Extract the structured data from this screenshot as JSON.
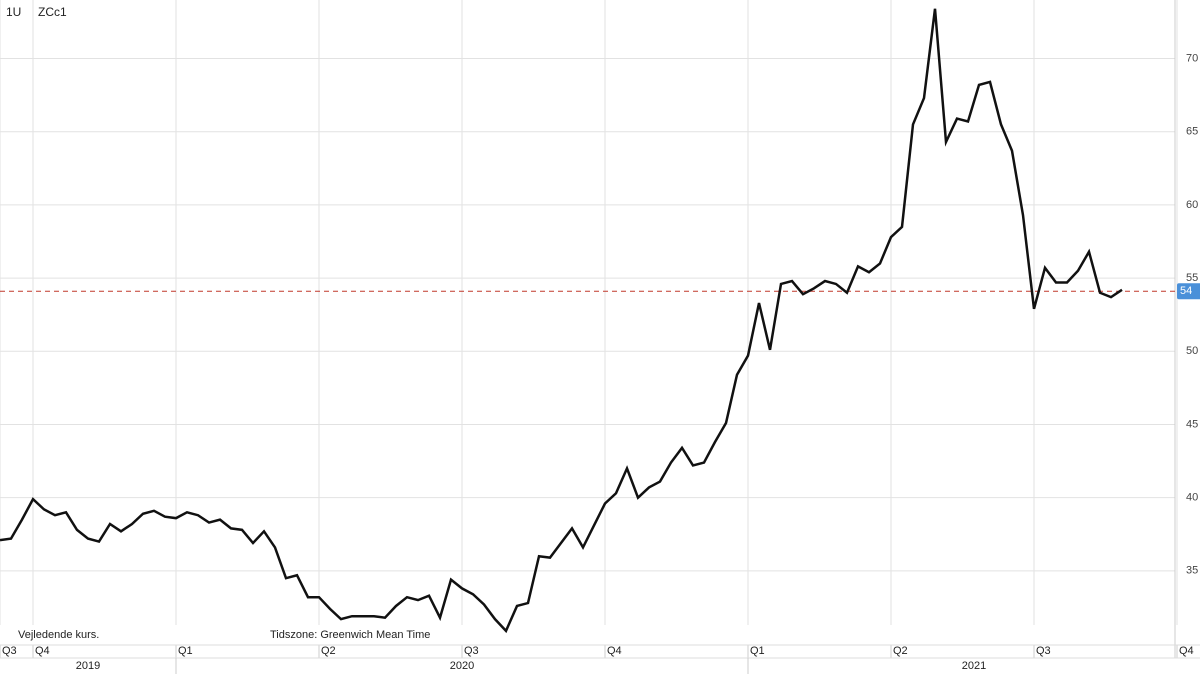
{
  "chart_data": {
    "type": "line",
    "instrument": "ZCc1",
    "interval": "1U",
    "note_left": "Vejledende kurs.",
    "note_right": "Tidszone: Greenwich Mean Time",
    "categories": [
      "Q3",
      null,
      null,
      "Q4",
      null,
      null,
      null,
      null,
      null,
      null,
      null,
      null,
      null,
      null,
      null,
      null,
      "Q1",
      null,
      null,
      null,
      null,
      null,
      null,
      null,
      null,
      null,
      null,
      null,
      null,
      "Q2",
      null,
      null,
      null,
      null,
      null,
      null,
      null,
      null,
      null,
      null,
      null,
      null,
      "Q3",
      null,
      null,
      null,
      null,
      null,
      null,
      null,
      null,
      null,
      null,
      null,
      null,
      "Q4",
      null,
      null,
      null,
      null,
      null,
      null,
      null,
      null,
      null,
      null,
      null,
      null,
      "Q1",
      null,
      null,
      null,
      null,
      null,
      null,
      null,
      null,
      null,
      null,
      null,
      null,
      "Q2",
      null,
      null,
      null,
      null,
      null,
      null,
      null,
      null,
      null,
      null,
      null,
      null,
      "Q3",
      null,
      null,
      null,
      null,
      null,
      null,
      null,
      null,
      null,
      null,
      null,
      null,
      "Q4"
    ],
    "years": [
      "2019",
      "2020",
      "2021"
    ],
    "series": [
      {
        "name": "ZCc1",
        "color": "#111111",
        "values": [
          37.1,
          37.2,
          38.5,
          39.9,
          39.2,
          38.8,
          39.0,
          37.8,
          37.2,
          37.0,
          38.2,
          37.7,
          38.2,
          38.9,
          39.1,
          38.7,
          38.6,
          39.0,
          38.8,
          38.3,
          38.5,
          37.9,
          37.8,
          36.9,
          37.7,
          36.6,
          34.5,
          34.7,
          33.2,
          33.2,
          32.4,
          31.7,
          31.9,
          31.9,
          31.9,
          31.8,
          32.6,
          33.2,
          33.0,
          33.3,
          31.8,
          34.4,
          33.8,
          33.4,
          32.7,
          31.7,
          30.9,
          32.6,
          32.8,
          36.0,
          35.9,
          36.9,
          37.9,
          36.6,
          38.1,
          39.6,
          40.3,
          42.0,
          40.0,
          40.7,
          41.1,
          42.4,
          43.4,
          42.2,
          42.4,
          43.8,
          45.1,
          48.4,
          49.7,
          53.3,
          50.1,
          54.6,
          54.8,
          53.9,
          54.3,
          54.8,
          54.6,
          54.0,
          55.8,
          55.4,
          56.0,
          57.8,
          58.5,
          65.5,
          67.3,
          73.4,
          64.3,
          65.9,
          65.7,
          68.2,
          68.4,
          65.5,
          63.7,
          59.3,
          52.9,
          55.7,
          54.7,
          54.7,
          55.5,
          56.8,
          54.0,
          53.7,
          54.2,
          null,
          null,
          null,
          null,
          null
        ]
      }
    ],
    "last_price": {
      "value": 54.1,
      "label": "54",
      "color": "#c0392b",
      "box_color": "#4a90d9"
    },
    "ylim": [
      31.3,
      74.0
    ],
    "yticks": [
      {
        "value": 35,
        "label": "35"
      },
      {
        "value": 40,
        "label": "40"
      },
      {
        "value": 45,
        "label": "45"
      },
      {
        "value": 50,
        "label": "50"
      },
      {
        "value": 55,
        "label": "55"
      },
      {
        "value": 60,
        "label": "60"
      },
      {
        "value": 65,
        "label": "65"
      },
      {
        "value": 70,
        "label": "70"
      }
    ],
    "grid": true
  }
}
